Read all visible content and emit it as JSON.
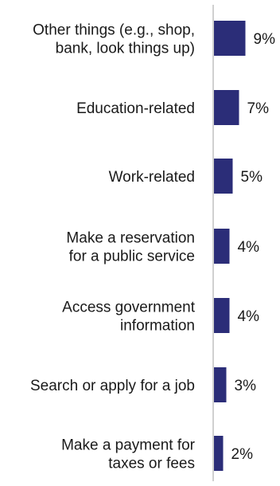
{
  "chart_data": {
    "type": "bar",
    "orientation": "horizontal",
    "categories": [
      [
        "Other things (e.g., shop,",
        "bank, look things up)"
      ],
      [
        "Education-related"
      ],
      [
        "Work-related"
      ],
      [
        "Make a reservation",
        "for a public service"
      ],
      [
        "Access government",
        "information"
      ],
      [
        "Search or apply for a job"
      ],
      [
        "Make a payment for",
        "taxes or fees"
      ]
    ],
    "values": [
      9,
      7,
      5,
      4,
      4,
      3,
      2
    ],
    "value_labels": [
      "9%",
      "7%",
      "5%",
      "4%",
      "4%",
      "3%",
      "2%"
    ],
    "unit": "%",
    "xlim": [
      0,
      9
    ],
    "bar_color": "#2b2d78",
    "axis_color": "#d0d0d0",
    "grid": false,
    "legend": "none"
  }
}
